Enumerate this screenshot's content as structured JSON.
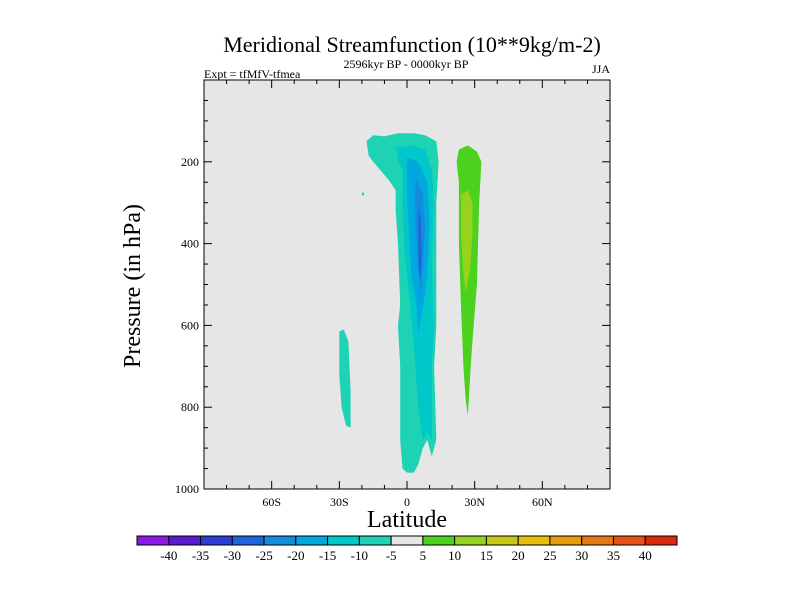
{
  "chart_data": {
    "type": "contour",
    "title": "Meridional Streamfunction (10**9kg/m-2)",
    "subtitle_left": "Expt = tfMfV-tfmea",
    "subtitle_center": "2596kyr BP - 0000kyr BP",
    "subtitle_right": "JJA",
    "xlabel": "Latitude",
    "ylabel": "Pressure (in hPa)",
    "xlim": [
      -90,
      90
    ],
    "ylim": [
      1000,
      0
    ],
    "x_ticks": [
      {
        "value": -60,
        "label": "60S"
      },
      {
        "value": -30,
        "label": "30S"
      },
      {
        "value": 0,
        "label": "0"
      },
      {
        "value": 30,
        "label": "30N"
      },
      {
        "value": 60,
        "label": "60N"
      }
    ],
    "y_ticks": [
      {
        "value": 200,
        "label": "200"
      },
      {
        "value": 400,
        "label": "400"
      },
      {
        "value": 600,
        "label": "600"
      },
      {
        "value": 800,
        "label": "800"
      },
      {
        "value": 1000,
        "label": "1000"
      }
    ],
    "background_color": "#e6e6e6",
    "colorbar": {
      "levels": [
        "-40",
        "-35",
        "-30",
        "-25",
        "-20",
        "-15",
        "-10",
        "-5",
        "5",
        "10",
        "15",
        "20",
        "25",
        "30",
        "35",
        "40"
      ],
      "colors": [
        "#8c1ae6",
        "#5a1ad2",
        "#2d3cd2",
        "#1e64dc",
        "#148cdc",
        "#00a8e0",
        "#00c8c8",
        "#1ed2b4",
        "#e6e6e6",
        "#4ad21e",
        "#96d21e",
        "#c8c814",
        "#e6be0a",
        "#e69c0a",
        "#e67814",
        "#e65014",
        "#dc280a"
      ]
    },
    "regions": [
      {
        "name": "neg-5-main",
        "level": -5,
        "color": "#1ed2b4",
        "points": [
          [
            -15,
            135
          ],
          [
            -10,
            138
          ],
          [
            -4,
            130
          ],
          [
            3,
            130
          ],
          [
            8,
            135
          ],
          [
            13,
            150
          ],
          [
            14,
            200
          ],
          [
            13,
            300
          ],
          [
            13,
            400
          ],
          [
            13,
            600
          ],
          [
            12,
            700
          ],
          [
            13,
            880
          ],
          [
            11,
            920
          ],
          [
            9,
            880
          ],
          [
            7,
            900
          ],
          [
            5,
            940
          ],
          [
            3,
            960
          ],
          [
            0,
            960
          ],
          [
            -2,
            950
          ],
          [
            -3,
            880
          ],
          [
            -3,
            700
          ],
          [
            -4,
            600
          ],
          [
            -3,
            550
          ],
          [
            -4,
            400
          ],
          [
            -5,
            320
          ],
          [
            -5,
            270
          ],
          [
            -8,
            245
          ],
          [
            -15,
            200
          ],
          [
            -17,
            185
          ],
          [
            -18,
            150
          ]
        ]
      },
      {
        "name": "neg-5-patch",
        "level": -5,
        "color": "#1ed2b4",
        "points": [
          [
            -30,
            615
          ],
          [
            -28,
            610
          ],
          [
            -26,
            640
          ],
          [
            -25,
            760
          ],
          [
            -25,
            850
          ],
          [
            -27,
            845
          ],
          [
            -29,
            800
          ],
          [
            -30,
            720
          ]
        ]
      },
      {
        "name": "neg-5-dot",
        "level": -5,
        "color": "#1ed2b4",
        "points": [
          [
            -20,
            275
          ],
          [
            -19,
            275
          ],
          [
            -19,
            282
          ],
          [
            -20,
            282
          ]
        ]
      },
      {
        "name": "neg-10",
        "level": -10,
        "color": "#00c8c8",
        "points": [
          [
            -5,
            165
          ],
          [
            2,
            160
          ],
          [
            8,
            170
          ],
          [
            11,
            220
          ],
          [
            12,
            300
          ],
          [
            11,
            450
          ],
          [
            12,
            600
          ],
          [
            11,
            700
          ],
          [
            11,
            880
          ],
          [
            9,
            860
          ],
          [
            7,
            880
          ],
          [
            5,
            800
          ],
          [
            3,
            650
          ],
          [
            1,
            530
          ],
          [
            -1,
            430
          ],
          [
            -2,
            300
          ],
          [
            -2,
            220
          ],
          [
            -4,
            195
          ]
        ]
      },
      {
        "name": "neg-15",
        "level": -15,
        "color": "#00a8e0",
        "points": [
          [
            0,
            190
          ],
          [
            5,
            200
          ],
          [
            9,
            250
          ],
          [
            10,
            350
          ],
          [
            9,
            480
          ],
          [
            7,
            560
          ],
          [
            5,
            620
          ],
          [
            4,
            540
          ],
          [
            2,
            480
          ],
          [
            1,
            380
          ],
          [
            0,
            280
          ]
        ]
      },
      {
        "name": "neg-20",
        "level": -20,
        "color": "#148cdc",
        "points": [
          [
            4,
            240
          ],
          [
            7,
            280
          ],
          [
            8,
            360
          ],
          [
            7,
            460
          ],
          [
            6,
            540
          ],
          [
            5,
            450
          ],
          [
            4,
            370
          ],
          [
            3.5,
            290
          ]
        ]
      },
      {
        "name": "neg-25",
        "level": -25,
        "color": "#1e64dc",
        "points": [
          [
            5,
            305
          ],
          [
            6,
            340
          ],
          [
            6.5,
            420
          ],
          [
            6,
            490
          ],
          [
            5.2,
            460
          ],
          [
            5,
            380
          ]
        ]
      },
      {
        "name": "pos-5",
        "level": 5,
        "color": "#4ad21e",
        "points": [
          [
            23,
            170
          ],
          [
            27,
            160
          ],
          [
            31,
            175
          ],
          [
            33,
            200
          ],
          [
            32,
            300
          ],
          [
            31,
            500
          ],
          [
            29,
            640
          ],
          [
            28,
            720
          ],
          [
            27,
            820
          ],
          [
            26,
            780
          ],
          [
            25,
            700
          ],
          [
            24,
            560
          ],
          [
            23,
            400
          ],
          [
            23,
            250
          ],
          [
            22,
            200
          ]
        ]
      },
      {
        "name": "pos-10",
        "level": 10,
        "color": "#96d21e",
        "points": [
          [
            24,
            280
          ],
          [
            27,
            270
          ],
          [
            29,
            300
          ],
          [
            29,
            380
          ],
          [
            28,
            460
          ],
          [
            26,
            520
          ],
          [
            25,
            470
          ],
          [
            24,
            380
          ]
        ]
      }
    ]
  }
}
